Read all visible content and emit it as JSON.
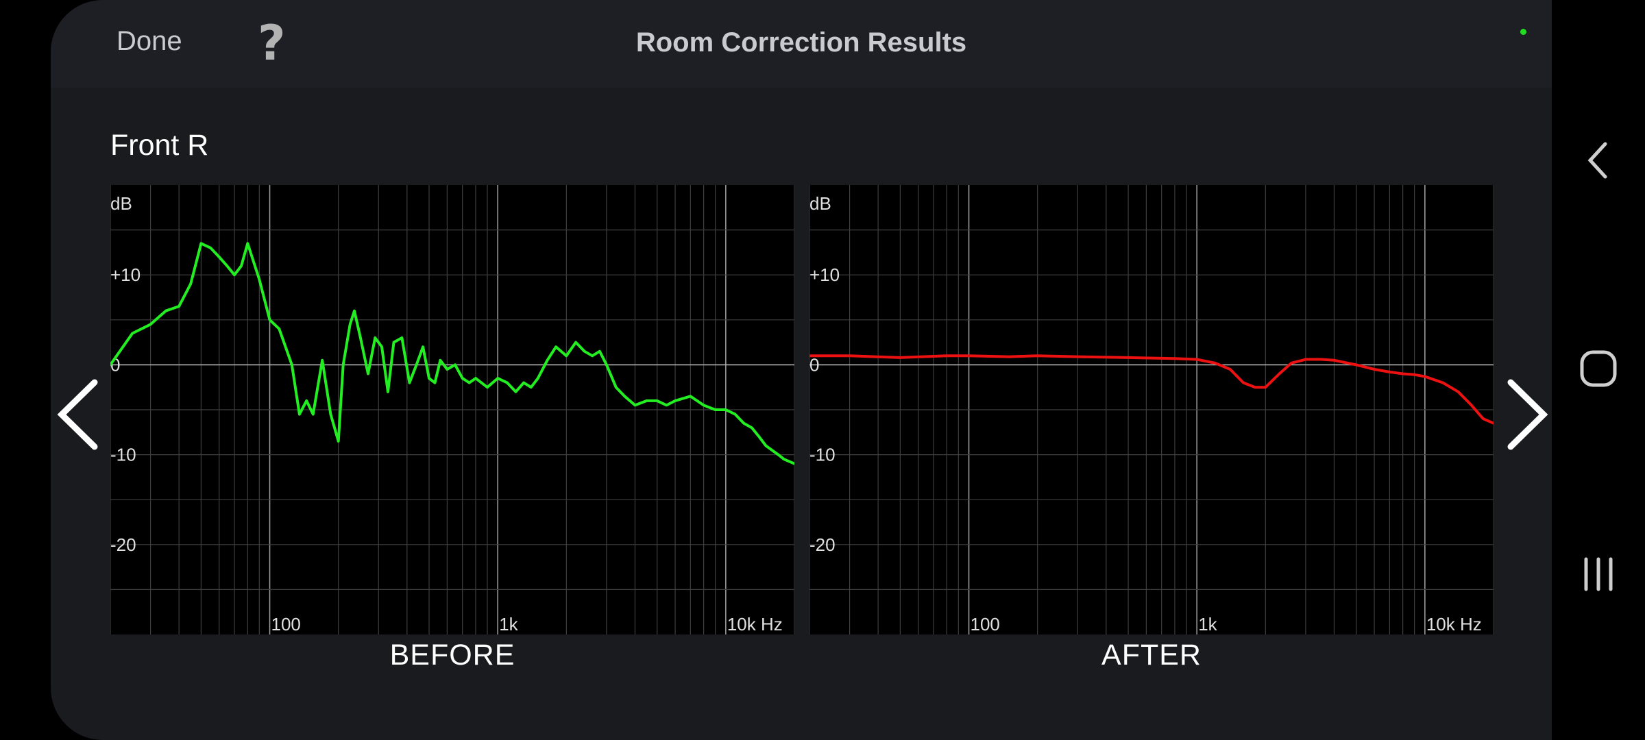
{
  "header": {
    "done_label": "Done",
    "help_label": "?",
    "title": "Room Correction Results"
  },
  "channel_label": "Front R",
  "charts": [
    {
      "caption": "BEFORE",
      "y_unit": "dB",
      "y_ticks": [
        "+10",
        "0",
        "-10",
        "-20"
      ],
      "x_ticks": [
        "100",
        "1k",
        "10k Hz"
      ],
      "line_color": "#22ee22"
    },
    {
      "caption": "AFTER",
      "y_unit": "dB",
      "y_ticks": [
        "+10",
        "0",
        "-10",
        "-20"
      ],
      "x_ticks": [
        "100",
        "1k",
        "10k Hz"
      ],
      "line_color": "#ee1111"
    }
  ],
  "chart_data": [
    {
      "type": "line",
      "title": "BEFORE",
      "xlabel": "Hz",
      "ylabel": "dB",
      "x_scale": "log",
      "xlim": [
        20,
        20000
      ],
      "ylim": [
        -30,
        20
      ],
      "grid": true,
      "x_ticks": [
        "100",
        "1k",
        "10k Hz"
      ],
      "y_ticks": [
        "+10",
        "0",
        "-10",
        "-20"
      ],
      "series": [
        {
          "color": "#22ee22",
          "x": [
            20,
            25,
            30,
            35,
            40,
            45,
            50,
            55,
            60,
            65,
            70,
            75,
            80,
            90,
            100,
            110,
            125,
            135,
            145,
            155,
            170,
            185,
            200,
            210,
            225,
            235,
            250,
            270,
            290,
            310,
            330,
            350,
            380,
            410,
            440,
            470,
            500,
            530,
            560,
            600,
            650,
            700,
            750,
            800,
            900,
            1000,
            1100,
            1200,
            1300,
            1400,
            1500,
            1650,
            1800,
            2000,
            2200,
            2400,
            2600,
            2800,
            3000,
            3300,
            3600,
            4000,
            4500,
            5000,
            5500,
            6000,
            7000,
            8000,
            9000,
            10000,
            11000,
            12000,
            13000,
            14000,
            15000,
            17000,
            18000,
            20000
          ],
          "y": [
            0,
            3.5,
            4.5,
            6,
            6.5,
            9,
            13.5,
            13,
            12,
            11,
            10,
            11,
            13.5,
            9.5,
            5,
            4,
            0,
            -5.5,
            -4,
            -5.5,
            0.5,
            -5.5,
            -8.5,
            0,
            4.5,
            6,
            3,
            -1,
            3,
            2,
            -3,
            2.5,
            3,
            -2,
            0,
            2,
            -1.5,
            -2,
            0.5,
            -0.5,
            0,
            -1.5,
            -2,
            -1.5,
            -2.5,
            -1.5,
            -2,
            -3,
            -2,
            -2.5,
            -1.5,
            0.5,
            2,
            1,
            2.5,
            1.5,
            1,
            1.5,
            0,
            -2.5,
            -3.5,
            -4.5,
            -4,
            -4,
            -4.5,
            -4,
            -3.5,
            -4.5,
            -5,
            -5,
            -5.5,
            -6.5,
            -7,
            -8,
            -9,
            -10,
            -10.5,
            -11
          ]
        }
      ]
    },
    {
      "type": "line",
      "title": "AFTER",
      "xlabel": "Hz",
      "ylabel": "dB",
      "x_scale": "log",
      "xlim": [
        20,
        20000
      ],
      "ylim": [
        -30,
        20
      ],
      "grid": true,
      "x_ticks": [
        "100",
        "1k",
        "10k Hz"
      ],
      "y_ticks": [
        "+10",
        "0",
        "-10",
        "-20"
      ],
      "series": [
        {
          "color": "#ee1111",
          "x": [
            20,
            30,
            50,
            80,
            100,
            150,
            200,
            300,
            500,
            800,
            1000,
            1200,
            1400,
            1600,
            1800,
            2000,
            2300,
            2600,
            3000,
            3500,
            4000,
            5000,
            6000,
            7000,
            8000,
            9000,
            10000,
            12000,
            14000,
            16000,
            18000,
            20000
          ],
          "y": [
            1,
            1,
            0.8,
            1,
            1,
            0.9,
            1,
            0.9,
            0.8,
            0.7,
            0.6,
            0.2,
            -0.5,
            -2,
            -2.5,
            -2.5,
            -1,
            0.2,
            0.6,
            0.6,
            0.5,
            0,
            -0.5,
            -0.8,
            -1,
            -1.1,
            -1.3,
            -2,
            -3,
            -4.5,
            -6,
            -6.5
          ]
        }
      ]
    }
  ]
}
